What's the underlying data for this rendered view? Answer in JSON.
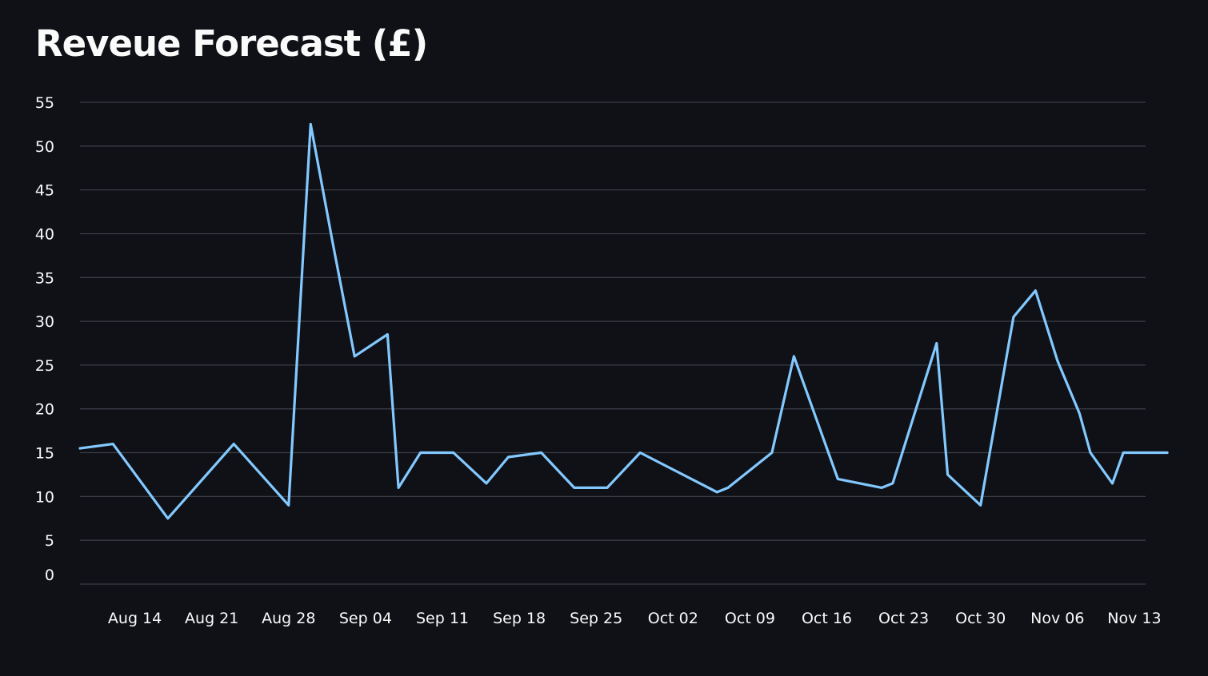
{
  "page": {
    "title": "Reveue Forecast (£)"
  },
  "colors": {
    "background": "#0f1117",
    "line": "#83c9ff",
    "grid": "#3a3d45",
    "text": "#fafafa"
  },
  "chart_data": {
    "type": "line",
    "title": "Reveue Forecast (£)",
    "xlabel": "",
    "ylabel": "",
    "ylim": [
      0,
      55
    ],
    "yticks": [
      0,
      5,
      10,
      15,
      20,
      25,
      30,
      35,
      40,
      45,
      50,
      55
    ],
    "xlim": [
      "2023-08-09",
      "2023-11-14"
    ],
    "xtick_labels": [
      "Aug 14",
      "Aug 21",
      "Aug 28",
      "Sep 04",
      "Sep 11",
      "Sep 18",
      "Sep 25",
      "Oct 02",
      "Oct 09",
      "Oct 16",
      "Oct 23",
      "Oct 30",
      "Nov 06",
      "Nov 13"
    ],
    "xtick_dates": [
      "2023-08-14",
      "2023-08-21",
      "2023-08-28",
      "2023-09-04",
      "2023-09-11",
      "2023-09-18",
      "2023-09-25",
      "2023-10-02",
      "2023-10-09",
      "2023-10-16",
      "2023-10-23",
      "2023-10-30",
      "2023-11-06",
      "2023-11-13"
    ],
    "grid": true,
    "series": [
      {
        "color": "#83c9ff",
        "points": [
          {
            "x": "2023-08-09",
            "y": 15.5
          },
          {
            "x": "2023-08-12",
            "y": 16.0
          },
          {
            "x": "2023-08-17",
            "y": 7.5
          },
          {
            "x": "2023-08-23",
            "y": 16.0
          },
          {
            "x": "2023-08-28",
            "y": 9.0
          },
          {
            "x": "2023-08-30",
            "y": 52.5
          },
          {
            "x": "2023-09-01",
            "y": 39.0
          },
          {
            "x": "2023-09-03",
            "y": 26.0
          },
          {
            "x": "2023-09-06",
            "y": 28.5
          },
          {
            "x": "2023-09-07",
            "y": 11.0
          },
          {
            "x": "2023-09-09",
            "y": 15.0
          },
          {
            "x": "2023-09-12",
            "y": 15.0
          },
          {
            "x": "2023-09-15",
            "y": 11.5
          },
          {
            "x": "2023-09-17",
            "y": 14.5
          },
          {
            "x": "2023-09-20",
            "y": 15.0
          },
          {
            "x": "2023-09-23",
            "y": 11.0
          },
          {
            "x": "2023-09-26",
            "y": 11.0
          },
          {
            "x": "2023-09-29",
            "y": 15.0
          },
          {
            "x": "2023-10-06",
            "y": 10.5
          },
          {
            "x": "2023-10-07",
            "y": 11.0
          },
          {
            "x": "2023-10-11",
            "y": 15.0
          },
          {
            "x": "2023-10-13",
            "y": 26.0
          },
          {
            "x": "2023-10-17",
            "y": 12.0
          },
          {
            "x": "2023-10-21",
            "y": 11.0
          },
          {
            "x": "2023-10-22",
            "y": 11.5
          },
          {
            "x": "2023-10-26",
            "y": 27.5
          },
          {
            "x": "2023-10-27",
            "y": 12.5
          },
          {
            "x": "2023-10-30",
            "y": 9.0
          },
          {
            "x": "2023-11-02",
            "y": 30.5
          },
          {
            "x": "2023-11-04",
            "y": 33.5
          },
          {
            "x": "2023-11-06",
            "y": 25.5
          },
          {
            "x": "2023-11-08",
            "y": 19.5
          },
          {
            "x": "2023-11-09",
            "y": 15.0
          },
          {
            "x": "2023-11-11",
            "y": 11.5
          },
          {
            "x": "2023-11-12",
            "y": 15.0
          },
          {
            "x": "2023-11-16",
            "y": 15.0
          }
        ]
      }
    ]
  }
}
